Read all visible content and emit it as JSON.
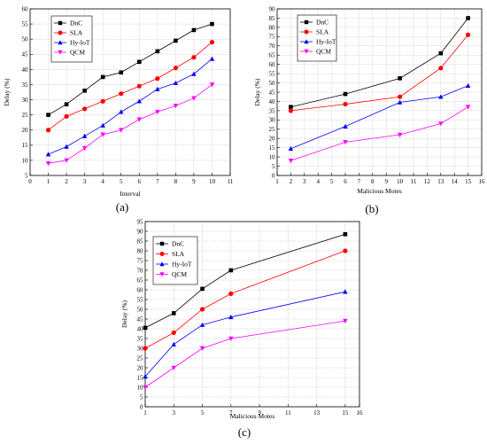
{
  "figure": {
    "panel_labels": [
      "(a)",
      "(b)",
      "(c)"
    ]
  },
  "chart_data": [
    {
      "type": "line",
      "xlabel": "Interval",
      "ylabel": "Delay (%)",
      "xlim": [
        0,
        11
      ],
      "ylim": [
        5,
        60
      ],
      "xticks": [
        0,
        1,
        2,
        3,
        4,
        5,
        6,
        7,
        8,
        9,
        10,
        11
      ],
      "yticks": [
        5,
        10,
        15,
        20,
        25,
        30,
        35,
        40,
        45,
        50,
        55,
        60
      ],
      "grid": true,
      "legend": "top-left",
      "x": [
        1,
        2,
        3,
        4,
        5,
        6,
        7,
        8,
        9,
        10
      ],
      "series": [
        {
          "name": "DnC",
          "color": "#000000",
          "marker": "square",
          "values": [
            25,
            28.5,
            33,
            37.5,
            39,
            42.5,
            46,
            49.5,
            53,
            55
          ]
        },
        {
          "name": "SLA",
          "color": "#ff0000",
          "marker": "circle",
          "values": [
            20,
            24.5,
            27,
            29.5,
            32,
            34.5,
            37,
            40.5,
            44,
            49
          ]
        },
        {
          "name": "Hy-IoT",
          "color": "#0000ff",
          "marker": "triangle-up",
          "values": [
            12,
            14.5,
            18,
            21.5,
            26,
            29.5,
            33.5,
            35.5,
            38.5,
            43.5
          ]
        },
        {
          "name": "QCM",
          "color": "#ff00ff",
          "marker": "triangle-down",
          "values": [
            9,
            10,
            14,
            18.5,
            20,
            23.5,
            26,
            28,
            30.5,
            35
          ]
        }
      ]
    },
    {
      "type": "line",
      "xlabel": "Malicious Motes",
      "ylabel": "Delay (%)",
      "xlim": [
        1,
        16
      ],
      "ylim": [
        0,
        90
      ],
      "xticks": [
        1,
        2,
        3,
        4,
        5,
        6,
        7,
        8,
        9,
        10,
        11,
        12,
        13,
        14,
        15,
        16
      ],
      "yticks": [
        0,
        5,
        10,
        15,
        20,
        25,
        30,
        35,
        40,
        45,
        50,
        55,
        60,
        65,
        70,
        75,
        80,
        85,
        90
      ],
      "grid": true,
      "legend": "top-left",
      "x": [
        2,
        6,
        10,
        13,
        15
      ],
      "series": [
        {
          "name": "DnC",
          "color": "#000000",
          "marker": "square",
          "values": [
            37,
            44,
            52.5,
            66,
            85
          ]
        },
        {
          "name": "SLA",
          "color": "#ff0000",
          "marker": "circle",
          "values": [
            35,
            38.5,
            42.5,
            58,
            76
          ]
        },
        {
          "name": "Hy-IoT",
          "color": "#0000ff",
          "marker": "triangle-up",
          "values": [
            14.5,
            26.5,
            39.5,
            42.5,
            48.5
          ]
        },
        {
          "name": "QCM",
          "color": "#ff00ff",
          "marker": "triangle-down",
          "values": [
            8,
            18,
            22,
            28,
            37
          ]
        }
      ]
    },
    {
      "type": "line",
      "xlabel": "Malicious Motes",
      "ylabel": "Delay (%)",
      "xlim": [
        1,
        16
      ],
      "ylim": [
        0,
        95
      ],
      "xticks": [
        1,
        3,
        5,
        7,
        9,
        11,
        13,
        15,
        16
      ],
      "yticks": [
        0,
        5,
        10,
        15,
        20,
        25,
        30,
        35,
        40,
        45,
        50,
        55,
        60,
        65,
        70,
        75,
        80,
        85,
        90,
        95
      ],
      "grid": true,
      "legend": "top-left",
      "x": [
        1,
        3,
        5,
        7,
        15
      ],
      "series": [
        {
          "name": "DnC",
          "color": "#000000",
          "marker": "square",
          "values": [
            40.5,
            48,
            60.5,
            70,
            88.5
          ]
        },
        {
          "name": "SLA",
          "color": "#ff0000",
          "marker": "circle",
          "values": [
            30,
            38,
            50,
            58,
            80
          ]
        },
        {
          "name": "Hy-IoT",
          "color": "#0000ff",
          "marker": "triangle-up",
          "values": [
            15.5,
            32,
            42,
            46,
            59
          ]
        },
        {
          "name": "QCM",
          "color": "#ff00ff",
          "marker": "triangle-down",
          "values": [
            10,
            20,
            30,
            35,
            44
          ]
        }
      ]
    }
  ]
}
